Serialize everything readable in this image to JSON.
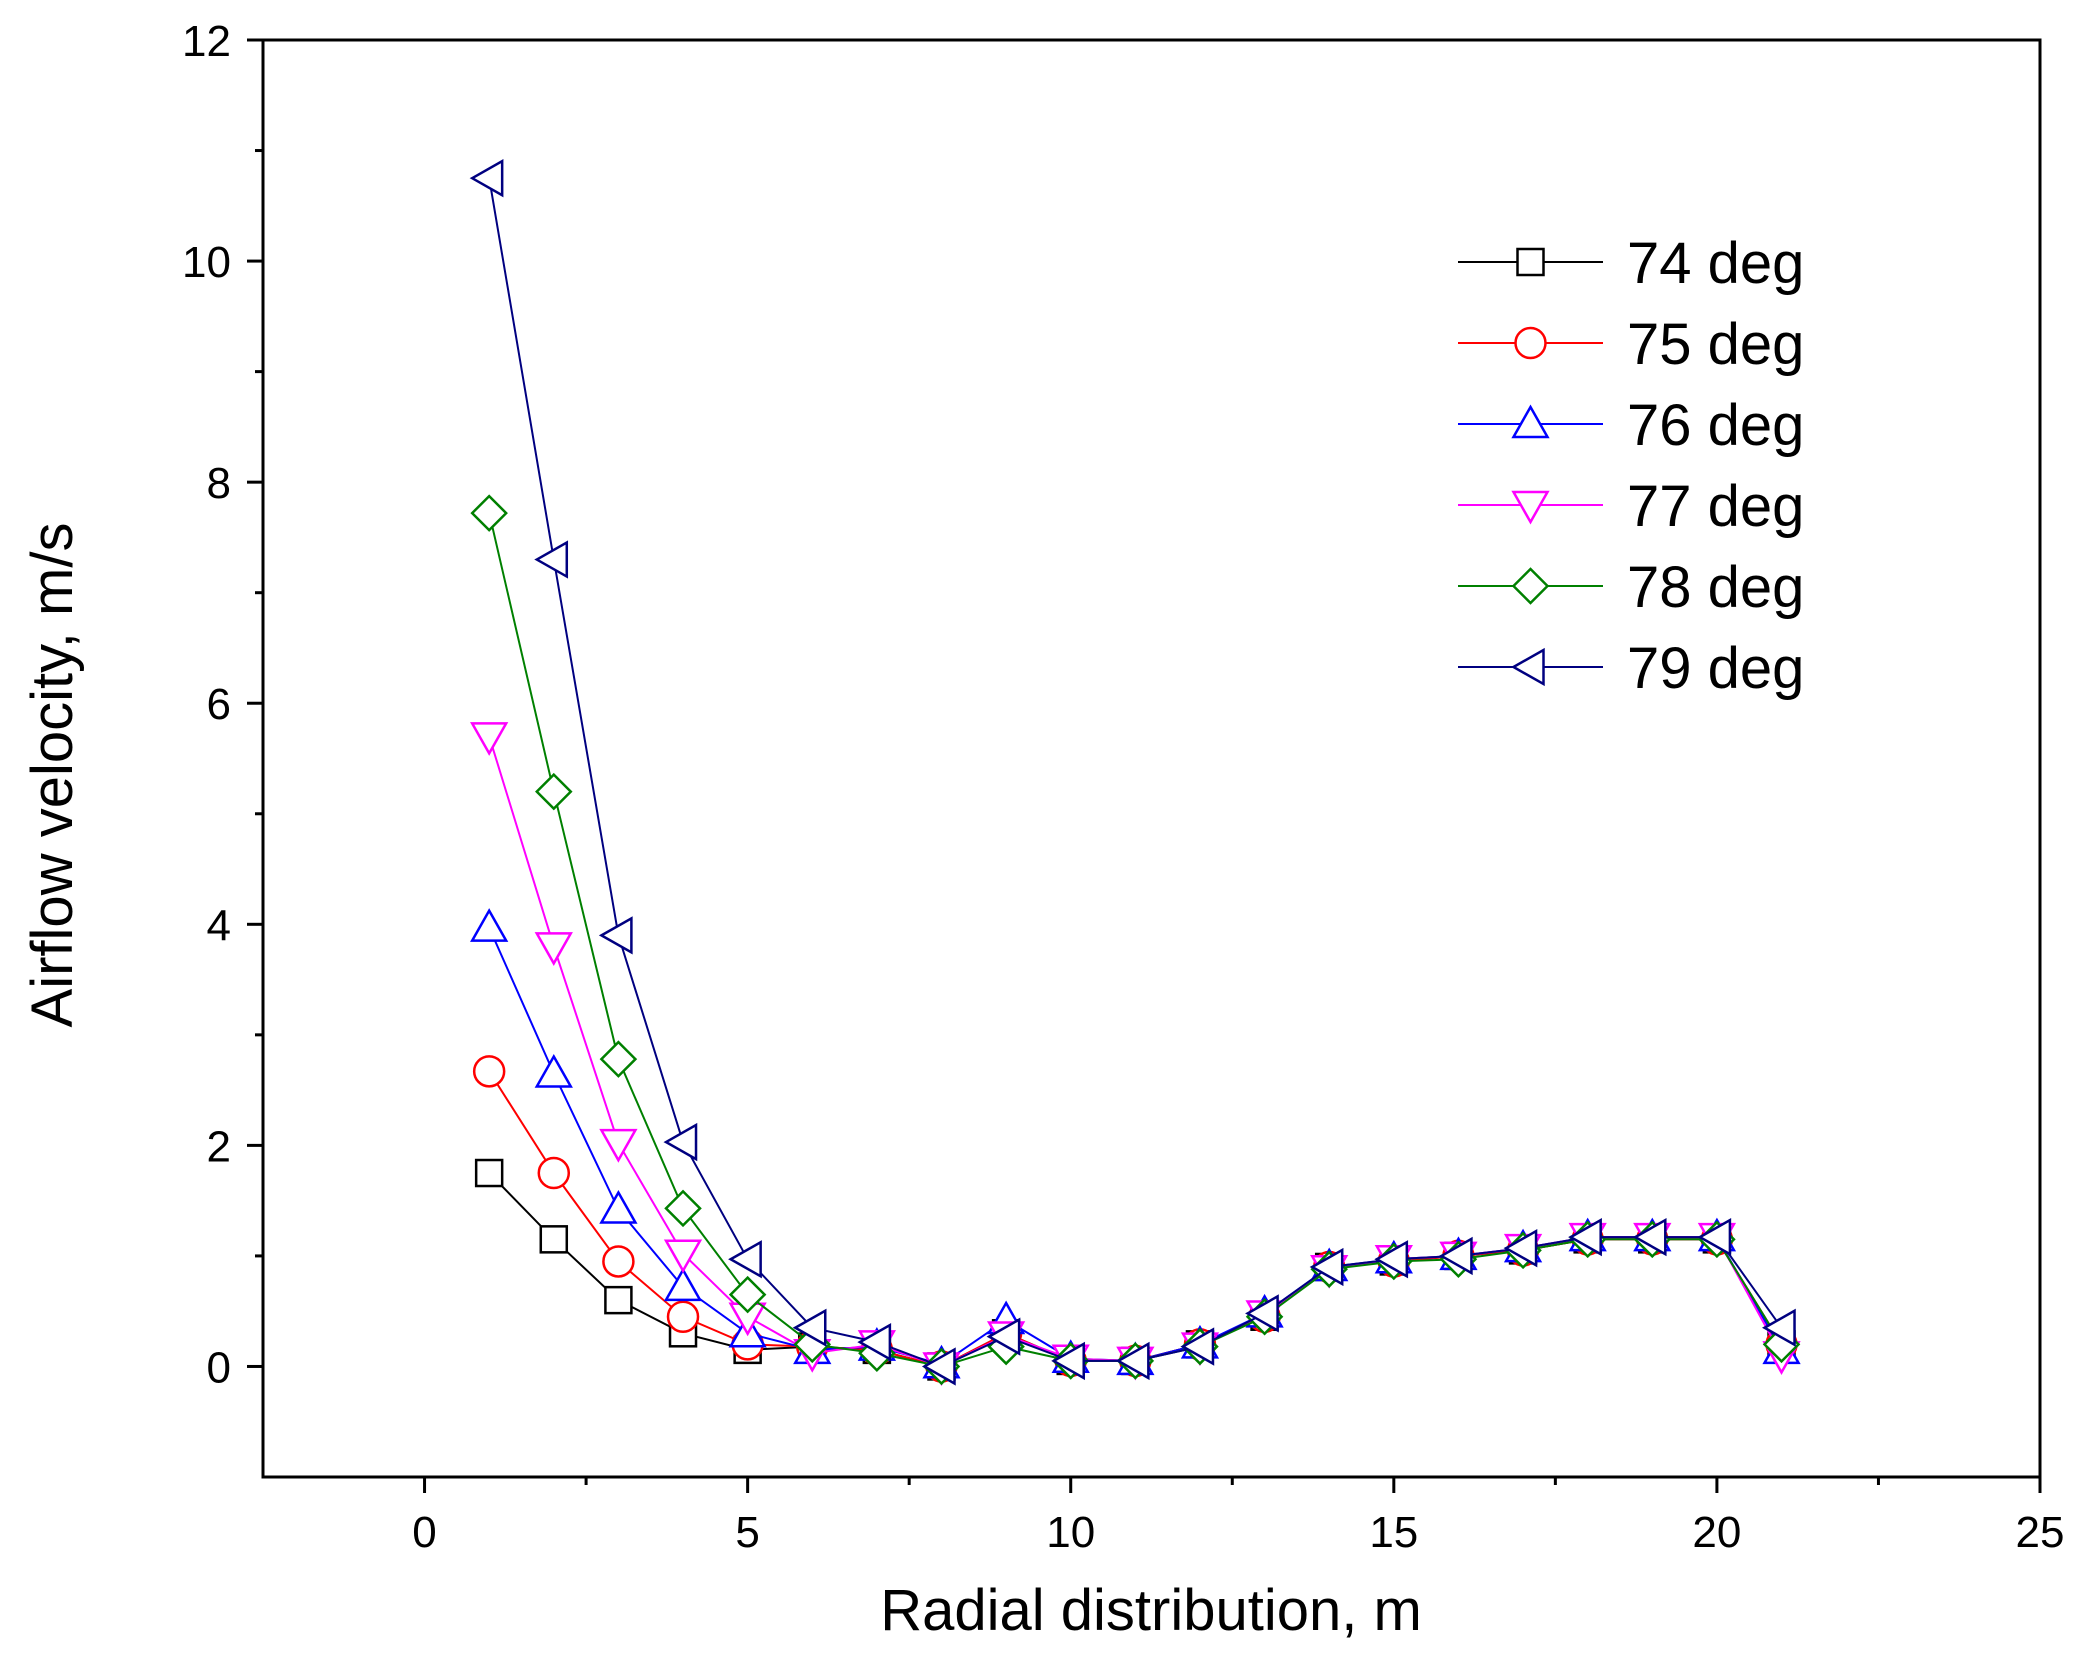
{
  "chart_data": {
    "type": "line",
    "xlabel": "Radial distribution, m",
    "ylabel": "Airflow velocity, m/s",
    "xlim": [
      -2.5,
      25
    ],
    "ylim": [
      -1,
      12
    ],
    "xticks": [
      0,
      5,
      10,
      15,
      20,
      25
    ],
    "yticks": [
      0,
      2,
      4,
      6,
      8,
      10,
      12
    ],
    "grid": false,
    "legend_position": "top-right",
    "x": [
      1,
      2,
      3,
      4,
      5,
      6,
      7,
      8,
      9,
      10,
      11,
      12,
      13,
      14,
      15,
      16,
      17,
      18,
      19,
      20,
      21
    ],
    "series": [
      {
        "name": "74 deg",
        "color": "#000000",
        "marker": "square",
        "values": [
          1.75,
          1.15,
          0.6,
          0.3,
          0.15,
          0.18,
          0.15,
          0.0,
          0.3,
          0.05,
          0.05,
          0.2,
          0.45,
          0.9,
          0.95,
          1.0,
          1.05,
          1.15,
          1.15,
          1.15,
          0.2
        ]
      },
      {
        "name": "75 deg",
        "color": "#ff0000",
        "marker": "circle",
        "values": [
          2.67,
          1.75,
          0.95,
          0.45,
          0.2,
          0.18,
          0.15,
          0.0,
          0.3,
          0.05,
          0.05,
          0.2,
          0.45,
          0.9,
          0.95,
          1.0,
          1.05,
          1.15,
          1.15,
          1.15,
          0.2
        ]
      },
      {
        "name": "76 deg",
        "color": "#0000ff",
        "marker": "triangle-up",
        "values": [
          3.97,
          2.65,
          1.42,
          0.72,
          0.3,
          0.15,
          0.18,
          0.02,
          0.42,
          0.07,
          0.05,
          0.2,
          0.48,
          0.9,
          0.97,
          1.0,
          1.07,
          1.17,
          1.17,
          1.17,
          0.15
        ]
      },
      {
        "name": "77 deg",
        "color": "#ff00ff",
        "marker": "triangle-down",
        "values": [
          5.7,
          3.8,
          2.02,
          1.02,
          0.45,
          0.12,
          0.2,
          0.0,
          0.28,
          0.07,
          0.05,
          0.18,
          0.47,
          0.88,
          0.97,
          1.0,
          1.07,
          1.17,
          1.17,
          1.17,
          0.1
        ]
      },
      {
        "name": "78 deg",
        "color": "#008000",
        "marker": "diamond",
        "values": [
          7.72,
          5.2,
          2.78,
          1.43,
          0.65,
          0.2,
          0.12,
          0.0,
          0.18,
          0.05,
          0.05,
          0.18,
          0.45,
          0.88,
          0.95,
          0.97,
          1.05,
          1.15,
          1.15,
          1.15,
          0.2
        ]
      },
      {
        "name": "79 deg",
        "color": "#000080",
        "marker": "triangle-left",
        "values": [
          10.75,
          7.3,
          3.9,
          2.03,
          0.97,
          0.35,
          0.22,
          0.0,
          0.27,
          0.05,
          0.05,
          0.18,
          0.48,
          0.9,
          0.97,
          1.0,
          1.07,
          1.17,
          1.17,
          1.17,
          0.35
        ]
      }
    ]
  }
}
